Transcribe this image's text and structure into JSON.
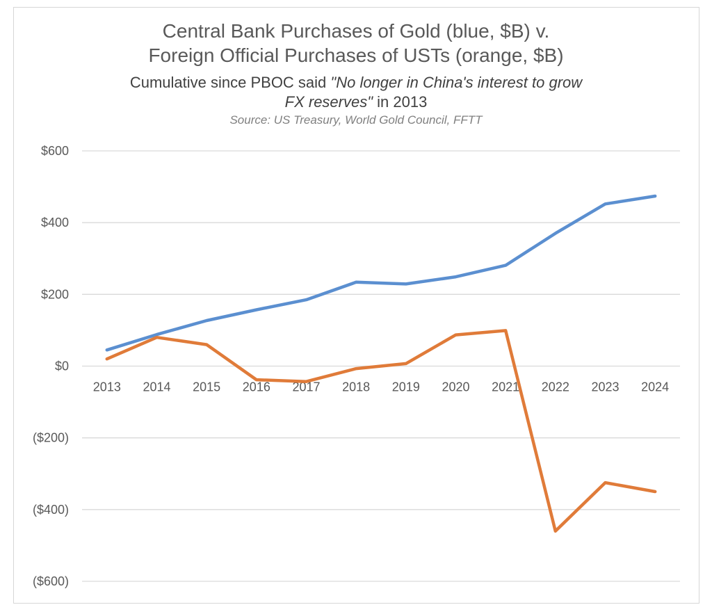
{
  "chart_data": {
    "type": "line",
    "title_line1": "Central Bank Purchases of Gold (blue, $B) v.",
    "title_line2": "Foreign Official Purchases of USTs (orange, $B)",
    "subtitle_pre": "Cumulative since PBOC said ",
    "subtitle_quote": "\"No longer in China's interest to grow",
    "subtitle_quote2": "FX reserves\"",
    "subtitle_post": " in 2013",
    "source": "Source: US Treasury, World Gold Council, FFTT",
    "xlabel": "",
    "ylabel": "",
    "categories": [
      "2013",
      "2014",
      "2015",
      "2016",
      "2017",
      "2018",
      "2019",
      "2020",
      "2021",
      "2022",
      "2023",
      "2024"
    ],
    "y_ticks": [
      600,
      400,
      200,
      0,
      -200,
      -400,
      -600
    ],
    "y_tick_labels": [
      "$600",
      "$400",
      "$200",
      "$0",
      "($200)",
      "($400)",
      "($600)"
    ],
    "ylim": [
      -600,
      600
    ],
    "grid": true,
    "legend": "none",
    "series": [
      {
        "color": "#5b8fd0",
        "values": [
          45,
          88,
          127,
          157,
          185,
          234,
          229,
          249,
          281,
          370,
          452,
          474
        ]
      },
      {
        "color": "#e07b39",
        "values": [
          20,
          80,
          60,
          -38,
          -43,
          -7,
          7,
          87,
          99,
          -460,
          -325,
          -350
        ]
      }
    ]
  }
}
